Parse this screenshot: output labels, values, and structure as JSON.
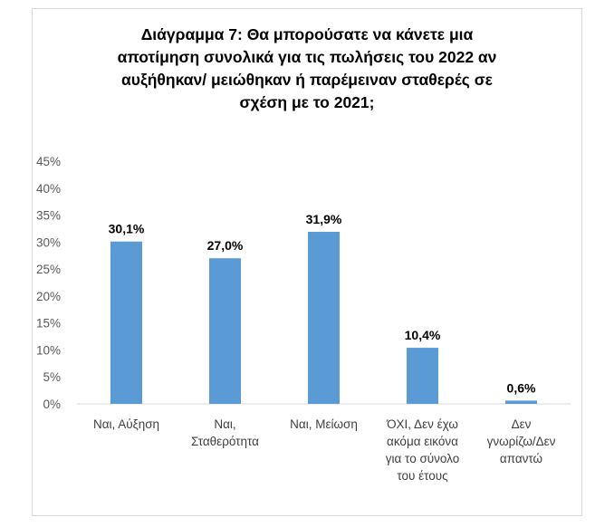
{
  "chart_data": {
    "type": "bar",
    "title_lines": [
      "Διάγραμμα 7: Θα μπορούσατε να κάνετε μια",
      "αποτίμηση συνολικά για τις πωλήσεις του 2022 αν",
      "αυξήθηκαν/ μειώθηκαν ή παρέμειναν σταθερές σε",
      "σχέση με το 2021;"
    ],
    "categories": [
      [
        "Ναι, Αύξηση"
      ],
      [
        "Ναι,",
        "Σταθερότητα"
      ],
      [
        "Ναι, Μείωση"
      ],
      [
        "ΌΧΙ, Δεν έχω",
        "ακόμα εικόνα",
        "για το σύνολο",
        "του έτους"
      ],
      [
        "Δεν",
        "γνωρίζω/Δεν",
        "απαντώ"
      ]
    ],
    "values": [
      30.1,
      27.0,
      31.9,
      10.4,
      0.6
    ],
    "value_labels": [
      "30,1%",
      "27,0%",
      "31,9%",
      "10,4%",
      "0,6%"
    ],
    "ylim": [
      0,
      45
    ],
    "y_ticks": [
      "0%",
      "5%",
      "10%",
      "15%",
      "20%",
      "25%",
      "30%",
      "35%",
      "40%",
      "45%"
    ],
    "bar_color": "#5b9bd5",
    "grid": false
  }
}
